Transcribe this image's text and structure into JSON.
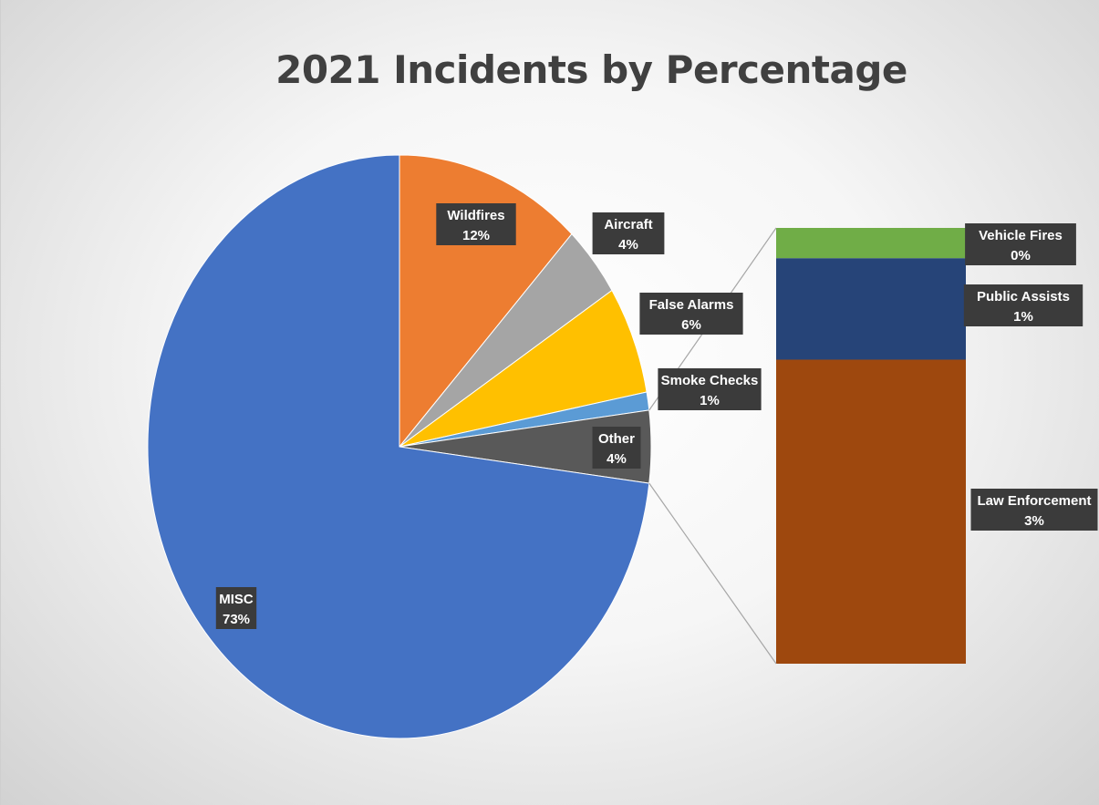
{
  "chart_data": {
    "type": "pie",
    "subtype": "bar-of-pie",
    "title": "2021 Incidents by Percentage",
    "slices": [
      {
        "label": "Wildfires",
        "value": 12,
        "pct_text": "12%",
        "color": "#ED7D31"
      },
      {
        "label": "Aircraft",
        "value": 4,
        "pct_text": "4%",
        "color": "#A5A5A5"
      },
      {
        "label": "False Alarms",
        "value": 6,
        "pct_text": "6%",
        "color": "#FFC000"
      },
      {
        "label": "Smoke Checks",
        "value": 1,
        "pct_text": "1%",
        "color": "#5B9BD5"
      },
      {
        "label": "Other",
        "value": 4,
        "pct_text": "4%",
        "color": "#595959"
      },
      {
        "label": "MISC",
        "value": 73,
        "pct_text": "73%",
        "color": "#4472C4"
      }
    ],
    "breakdown_of": "Other",
    "breakdown": [
      {
        "label": "Vehicle Fires",
        "value": 0.3,
        "pct_text": "0%",
        "color": "#70AD47"
      },
      {
        "label": "Public Assists",
        "value": 1,
        "pct_text": "1%",
        "color": "#264478"
      },
      {
        "label": "Law Enforcement",
        "value": 3,
        "pct_text": "3%",
        "color": "#9E480E"
      }
    ],
    "label_style": "dark box, white bold text, category name and percentage"
  }
}
